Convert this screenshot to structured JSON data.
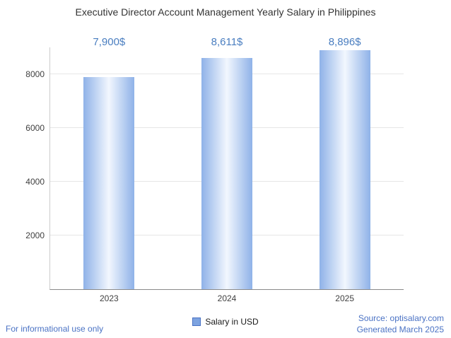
{
  "title": "Executive Director Account Management Yearly Salary in Philippines",
  "legend": {
    "label": "Salary in USD",
    "swatch_color": "#7da3e0"
  },
  "footer": {
    "left": "For informational use only",
    "source": "Source: optisalary.com",
    "generated": "Generated March 2025"
  },
  "colors": {
    "bar_edge": "#8fb2e8",
    "bar_center": "#f2f7fe",
    "value_label": "#4a7ec0",
    "gridline": "#e6e6e6"
  },
  "chart_data": {
    "type": "bar",
    "title": "Executive Director Account Management Yearly Salary in Philippines",
    "categories": [
      "2023",
      "2024",
      "2025"
    ],
    "values": [
      7900,
      8611,
      8896
    ],
    "value_labels": [
      "7,900$",
      "8,611$",
      "8,896$"
    ],
    "series_name": "Salary in USD",
    "xlabel": "",
    "ylabel": "",
    "ylim": [
      0,
      9000
    ],
    "yticks": [
      2000,
      4000,
      6000,
      8000
    ],
    "grid": true,
    "legend_position": "bottom"
  }
}
